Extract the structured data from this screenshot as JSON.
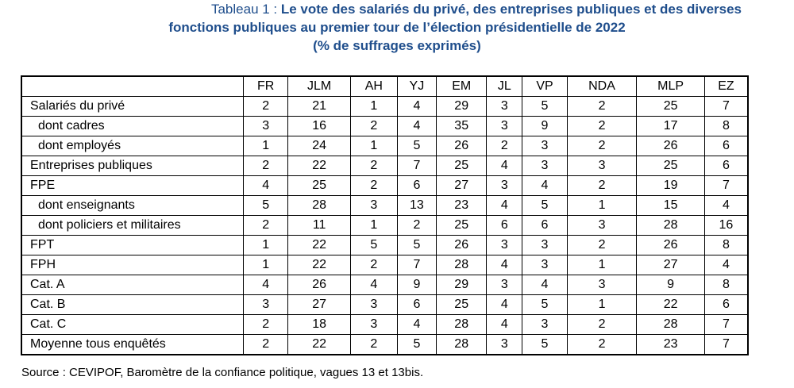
{
  "title": {
    "prefix": "Tableau 1 : ",
    "line1": "Le vote des salariés du privé, des entreprises publiques et des diverses",
    "line2": "fonctions publiques au premier tour de l’élection présidentielle de 2022",
    "line3": "(% de suffrages exprimés)"
  },
  "table": {
    "columns": [
      "FR",
      "JLM",
      "AH",
      "YJ",
      "EM",
      "JL",
      "VP",
      "NDA",
      "MLP",
      "EZ"
    ],
    "rows": [
      {
        "label": "Salariés du privé",
        "indent": false,
        "values": [
          "2",
          "21",
          "1",
          "4",
          "29",
          "3",
          "5",
          "2",
          "25",
          "7"
        ]
      },
      {
        "label": "dont cadres",
        "indent": true,
        "values": [
          "3",
          "16",
          "2",
          "4",
          "35",
          "3",
          "9",
          "2",
          "17",
          "8"
        ]
      },
      {
        "label": "dont employés",
        "indent": true,
        "values": [
          "1",
          "24",
          "1",
          "5",
          "26",
          "2",
          "3",
          "2",
          "26",
          "6"
        ]
      },
      {
        "label": "Entreprises publiques",
        "indent": false,
        "values": [
          "2",
          "22",
          "2",
          "7",
          "25",
          "4",
          "3",
          "3",
          "25",
          "6"
        ]
      },
      {
        "label": "FPE",
        "indent": false,
        "values": [
          "4",
          "25",
          "2",
          "6",
          "27",
          "3",
          "4",
          "2",
          "19",
          "7"
        ]
      },
      {
        "label": "dont enseignants",
        "indent": true,
        "values": [
          "5",
          "28",
          "3",
          "13",
          "23",
          "4",
          "5",
          "1",
          "15",
          "4"
        ]
      },
      {
        "label": "dont policiers et militaires",
        "indent": true,
        "values": [
          "2",
          "11",
          "1",
          "2",
          "25",
          "6",
          "6",
          "3",
          "28",
          "16"
        ]
      },
      {
        "label": "FPT",
        "indent": false,
        "values": [
          "1",
          "22",
          "5",
          "5",
          "26",
          "3",
          "3",
          "2",
          "26",
          "8"
        ]
      },
      {
        "label": "FPH",
        "indent": false,
        "values": [
          "1",
          "22",
          "2",
          "7",
          "28",
          "4",
          "3",
          "1",
          "27",
          "4"
        ]
      },
      {
        "label": "Cat. A",
        "indent": false,
        "values": [
          "4",
          "26",
          "4",
          "9",
          "29",
          "3",
          "4",
          "3",
          "9",
          "8"
        ]
      },
      {
        "label": "Cat. B",
        "indent": false,
        "values": [
          "3",
          "27",
          "3",
          "6",
          "25",
          "4",
          "5",
          "1",
          "22",
          "6"
        ]
      },
      {
        "label": "Cat. C",
        "indent": false,
        "values": [
          "2",
          "18",
          "3",
          "4",
          "28",
          "4",
          "3",
          "2",
          "28",
          "7"
        ]
      },
      {
        "label": "Moyenne tous enquêtés",
        "indent": false,
        "values": [
          "2",
          "22",
          "2",
          "5",
          "28",
          "3",
          "5",
          "2",
          "23",
          "7"
        ]
      }
    ]
  },
  "source": "Source : CEVIPOF, Baromètre de la confiance politique, vagues 13 et 13bis.",
  "colors": {
    "title": "#1f4e8c",
    "text": "#000000",
    "background": "#ffffff"
  }
}
